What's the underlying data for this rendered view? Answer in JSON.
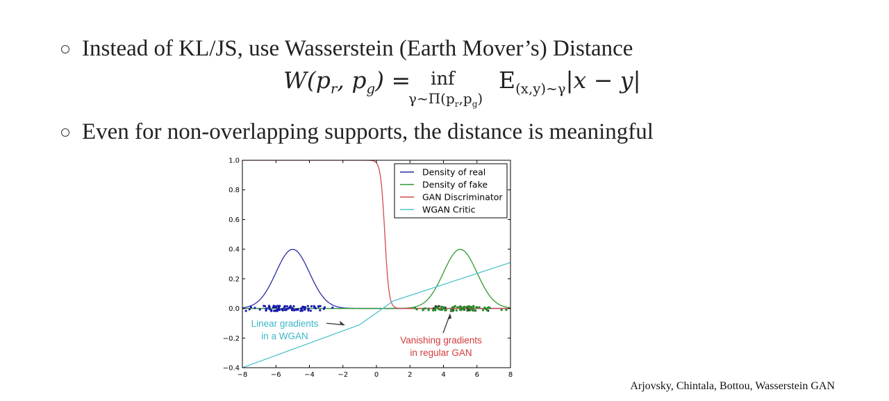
{
  "bullets": [
    "Instead of KL/JS, use Wasserstein (Earth Mover’s) Distance",
    "Even for non-overlapping supports, the distance is meaningful"
  ],
  "citation": "Arjovsky, Chintala, Bottou, Wasserstein GAN",
  "chart_data": {
    "type": "line",
    "xlim": [
      -8,
      8
    ],
    "ylim": [
      -0.4,
      1.0
    ],
    "x_ticks": [
      -8,
      -6,
      -4,
      -2,
      0,
      2,
      4,
      6,
      8
    ],
    "y_ticks": [
      -0.4,
      -0.2,
      0.0,
      0.2,
      0.4,
      0.6,
      0.8,
      1.0
    ],
    "x_tick_labels": [
      "−8",
      "−6",
      "−4",
      "−2",
      "0",
      "2",
      "4",
      "6",
      "8"
    ],
    "y_tick_labels": [
      "−0.4",
      "−0.2",
      "0.0",
      "0.2",
      "0.4",
      "0.6",
      "0.8",
      "1.0"
    ],
    "grid": false,
    "legend_position": "top-right",
    "series": [
      {
        "name": "Density of real",
        "kind": "gaussian",
        "mean": -5,
        "std": 1,
        "color": "#2a2aa5"
      },
      {
        "name": "Density of fake",
        "kind": "gaussian",
        "mean": 5,
        "std": 1,
        "color": "#2e9a2e"
      },
      {
        "name": "GAN Discriminator",
        "kind": "sigmoid",
        "center": 0.5,
        "slope": 8,
        "color": "#d24a4a"
      },
      {
        "name": "WGAN Critic",
        "kind": "polyline",
        "x": [
          -8,
          -1,
          1,
          8
        ],
        "y": [
          -0.4,
          -0.11,
          0.05,
          0.31
        ],
        "color": "#4ec3cc"
      }
    ],
    "scatter": [
      {
        "label": "real samples",
        "center": -5,
        "spread": 2.3,
        "n": 90,
        "color": "#1a1ab0"
      },
      {
        "label": "fake samples",
        "center": 5,
        "spread": 2.3,
        "n": 90,
        "color": "#2a8a2a"
      }
    ],
    "annotations": [
      {
        "lines": [
          "Linear gradients",
          "in a WGAN"
        ],
        "color": "#3bb8c8",
        "arrow_to": [
          -1.9,
          -0.13
        ]
      },
      {
        "lines": [
          "Vanishing gradients",
          "in regular GAN"
        ],
        "color": "#d23a3a",
        "arrow_to": [
          4.4,
          0.0
        ]
      }
    ]
  }
}
